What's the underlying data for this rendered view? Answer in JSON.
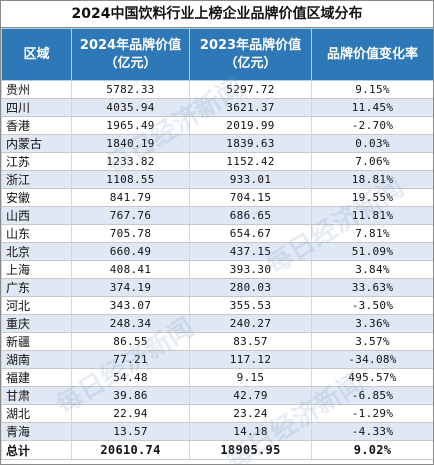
{
  "title": "2024中国饮料行业上榜企业品牌价值区域分布",
  "colors": {
    "header_bg": "#2e78b7",
    "stripe_bg": "#dfe8f4"
  },
  "headers": {
    "region": "区域",
    "v2024_line1": "2024年品牌价值",
    "v2024_line2": "（亿元）",
    "v2023_line1": "2023年品牌价值",
    "v2023_line2": "（亿元）",
    "change": "品牌价值变化率"
  },
  "rows": [
    {
      "region": "贵州",
      "v2024": "5782.33",
      "v2023": "5297.72",
      "change": "9.15%"
    },
    {
      "region": "四川",
      "v2024": "4035.94",
      "v2023": "3621.37",
      "change": "11.45%"
    },
    {
      "region": "香港",
      "v2024": "1965.49",
      "v2023": "2019.99",
      "change": "-2.70%"
    },
    {
      "region": "内蒙古",
      "v2024": "1840.19",
      "v2023": "1839.63",
      "change": "0.03%"
    },
    {
      "region": "江苏",
      "v2024": "1233.82",
      "v2023": "1152.42",
      "change": "7.06%"
    },
    {
      "region": "浙江",
      "v2024": "1108.55",
      "v2023": "933.01",
      "change": "18.81%"
    },
    {
      "region": "安徽",
      "v2024": "841.79",
      "v2023": "704.15",
      "change": "19.55%"
    },
    {
      "region": "山西",
      "v2024": "767.76",
      "v2023": "686.65",
      "change": "11.81%"
    },
    {
      "region": "山东",
      "v2024": "705.78",
      "v2023": "654.67",
      "change": "7.81%"
    },
    {
      "region": "北京",
      "v2024": "660.49",
      "v2023": "437.15",
      "change": "51.09%"
    },
    {
      "region": "上海",
      "v2024": "408.41",
      "v2023": "393.30",
      "change": "3.84%"
    },
    {
      "region": "广东",
      "v2024": "374.19",
      "v2023": "280.03",
      "change": "33.63%"
    },
    {
      "region": "河北",
      "v2024": "343.07",
      "v2023": "355.53",
      "change": "-3.50%"
    },
    {
      "region": "重庆",
      "v2024": "248.34",
      "v2023": "240.27",
      "change": "3.36%"
    },
    {
      "region": "新疆",
      "v2024": "86.55",
      "v2023": "83.57",
      "change": "3.57%"
    },
    {
      "region": "湖南",
      "v2024": "77.21",
      "v2023": "117.12",
      "change": "-34.08%"
    },
    {
      "region": "福建",
      "v2024": "54.48",
      "v2023": "9.15",
      "change": "495.57%"
    },
    {
      "region": "甘肃",
      "v2024": "39.86",
      "v2023": "42.79",
      "change": "-6.85%"
    },
    {
      "region": "湖北",
      "v2024": "22.94",
      "v2023": "23.24",
      "change": "-1.29%"
    },
    {
      "region": "青海",
      "v2024": "13.57",
      "v2023": "14.18",
      "change": "-4.33%"
    }
  ],
  "total": {
    "region": "总计",
    "v2024": "20610.74",
    "v2023": "18905.95",
    "change": "9.02%"
  },
  "watermark": "每日经济新闻"
}
